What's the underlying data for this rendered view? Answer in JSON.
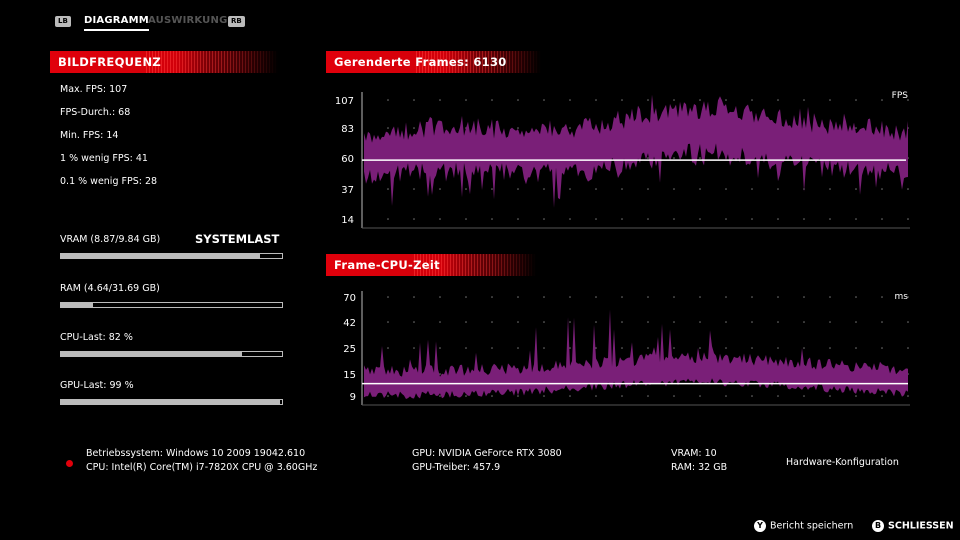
{
  "tabs": {
    "lb": "LB",
    "items": [
      {
        "label": "DIAGRAMM",
        "active": true
      },
      {
        "label": "AUSWIRKUNG",
        "active": false
      }
    ],
    "rb": "RB"
  },
  "framerate": {
    "title": "BILDFREQUENZ",
    "stats": [
      "Max. FPS: 107",
      "FPS-Durch.: 68",
      "Min. FPS: 14",
      "1 % wenig FPS: 41",
      "0.1 % wenig FPS: 28"
    ]
  },
  "system": {
    "title": "SYSTEMLAST",
    "items": [
      {
        "label": "VRAM (8.87/9.84 GB)",
        "fill": 0.9
      },
      {
        "label": "RAM (4.64/31.69 GB)",
        "fill": 0.146
      },
      {
        "label": "CPU-Last: 82 %",
        "fill": 0.82
      },
      {
        "label": "GPU-Last: 99 %",
        "fill": 0.99
      }
    ]
  },
  "chart_data": [
    {
      "type": "area",
      "title": "Gerenderte Frames: 6130",
      "unit": "FPS",
      "yticks": [
        "107",
        "83",
        "60",
        "37",
        "14"
      ],
      "ylim": [
        14,
        107
      ],
      "reference_line": 60,
      "color": "#7a1f78"
    },
    {
      "type": "area",
      "title": "Frame-CPU-Zeit",
      "unit": "ms",
      "yticks": [
        "70",
        "42",
        "25",
        "15",
        "9"
      ],
      "reference_line": 12,
      "color": "#7a1f78"
    }
  ],
  "hardware": {
    "os": "Betriebssystem: Windows 10 2009 19042.610",
    "cpu": "CPU: Intel(R) Core(TM) i7-7820X CPU @ 3.60GHz",
    "gpu": "GPU: NVIDIA GeForce RTX 3080",
    "gpu_driver": "GPU-Treiber: 457.9",
    "vram": "VRAM: 10",
    "ram": "RAM: 32 GB",
    "config_label": "Hardware-Konfiguration"
  },
  "footer": {
    "save": {
      "icon": "Y",
      "label": "Bericht speichern"
    },
    "close": {
      "icon": "B",
      "label": "SCHLIESSEN"
    }
  },
  "colors": {
    "accent": "#e1000b",
    "series": "#7a1f78",
    "indicator": "#e1000b"
  }
}
